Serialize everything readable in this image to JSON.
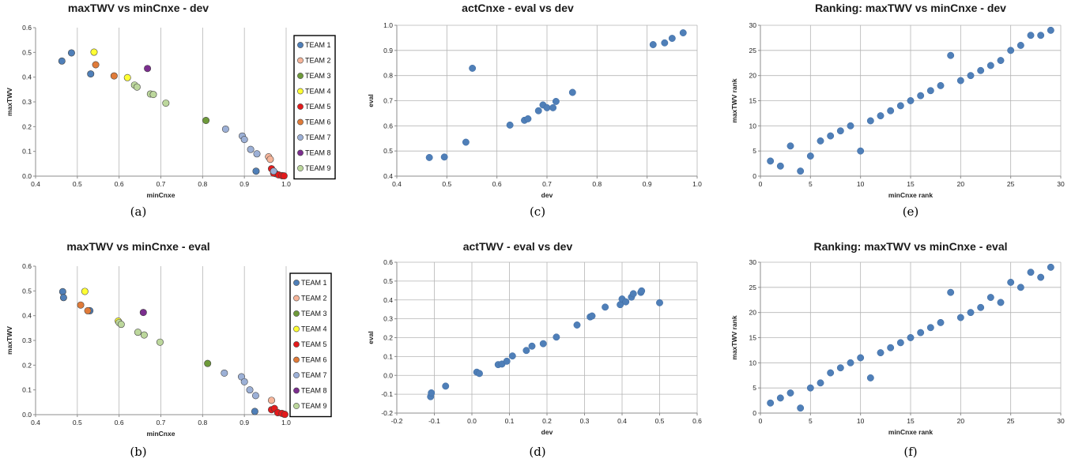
{
  "figure": {
    "team_colors": {
      "TEAM 1": "#4f7fb8",
      "TEAM 2": "#f6b59a",
      "TEAM 3": "#6e9a3a",
      "TEAM 4": "#ffff33",
      "TEAM 5": "#e31a1c",
      "TEAM 6": "#e07b39",
      "TEAM 7": "#9cb0d6",
      "TEAM 8": "#7b2d8e",
      "TEAM 9": "#bcd79c"
    },
    "uniform_point_color": "#4f7fb8",
    "gridline_color": "#b5b5b5"
  },
  "chart_data": [
    {
      "id": "a",
      "caption": "(a)",
      "type": "scatter",
      "title": "maxTWV vs minCnxe - dev",
      "xlabel": "minCnxe",
      "ylabel": "maxTWV",
      "xlim": [
        0.4,
        1.0
      ],
      "ylim": [
        0,
        0.6
      ],
      "xticks": [
        "0.4",
        "0.5",
        "0.6",
        "0.7",
        "0.8",
        "0.9",
        "1.0"
      ],
      "yticks": [
        "0.0",
        "0.1",
        "0.2",
        "0.3",
        "0.4",
        "0.5",
        "0.6"
      ],
      "grid": "vertical",
      "legend_position": "right",
      "series": [
        {
          "name": "TEAM 1",
          "x": [
            0.463,
            0.486,
            0.532,
            0.928,
            0.975,
            0.99
          ],
          "y": [
            0.465,
            0.498,
            0.413,
            0.02,
            0.01,
            0.002
          ]
        },
        {
          "name": "TEAM 2",
          "x": [
            0.958,
            0.962
          ],
          "y": [
            0.078,
            0.068
          ]
        },
        {
          "name": "TEAM 3",
          "x": [
            0.808
          ],
          "y": [
            0.225
          ]
        },
        {
          "name": "TEAM 4",
          "x": [
            0.54,
            0.62
          ],
          "y": [
            0.501,
            0.398
          ]
        },
        {
          "name": "TEAM 5",
          "x": [
            0.965,
            0.97,
            0.982,
            0.99,
            0.995
          ],
          "y": [
            0.03,
            0.012,
            0.005,
            0.002,
            0.001
          ]
        },
        {
          "name": "TEAM 6",
          "x": [
            0.544,
            0.588
          ],
          "y": [
            0.45,
            0.405
          ]
        },
        {
          "name": "TEAM 7",
          "x": [
            0.855,
            0.895,
            0.9,
            0.915,
            0.93,
            0.97
          ],
          "y": [
            0.19,
            0.162,
            0.148,
            0.108,
            0.09,
            0.02
          ]
        },
        {
          "name": "TEAM 8",
          "x": [
            0.668
          ],
          "y": [
            0.435
          ]
        },
        {
          "name": "TEAM 9",
          "x": [
            0.637,
            0.643,
            0.675,
            0.682,
            0.712
          ],
          "y": [
            0.368,
            0.36,
            0.332,
            0.33,
            0.295
          ]
        }
      ]
    },
    {
      "id": "b",
      "caption": "(b)",
      "type": "scatter",
      "title": "maxTWV vs minCnxe - eval",
      "xlabel": "minCnxe",
      "ylabel": "maxTWV",
      "xlim": [
        0.4,
        1.0
      ],
      "ylim": [
        0,
        0.6
      ],
      "xticks": [
        "0.4",
        "0.5",
        "0.6",
        "0.7",
        "0.8",
        "0.9",
        "1.0"
      ],
      "yticks": [
        "0.0",
        "0.1",
        "0.2",
        "0.3",
        "0.4",
        "0.5",
        "0.6"
      ],
      "grid": "vertical",
      "legend_position": "right",
      "series": [
        {
          "name": "TEAM 1",
          "x": [
            0.465,
            0.467,
            0.53,
            0.925,
            0.98,
            0.995
          ],
          "y": [
            0.497,
            0.473,
            0.42,
            0.013,
            0.008,
            0.002
          ]
        },
        {
          "name": "TEAM 2",
          "x": [
            0.965
          ],
          "y": [
            0.058
          ]
        },
        {
          "name": "TEAM 3",
          "x": [
            0.812
          ],
          "y": [
            0.207
          ]
        },
        {
          "name": "TEAM 4",
          "x": [
            0.518,
            0.598
          ],
          "y": [
            0.498,
            0.378
          ]
        },
        {
          "name": "TEAM 5",
          "x": [
            0.965,
            0.972,
            0.98,
            0.99,
            0.997
          ],
          "y": [
            0.02,
            0.025,
            0.008,
            0.005,
            0.001
          ]
        },
        {
          "name": "TEAM 6",
          "x": [
            0.508,
            0.525
          ],
          "y": [
            0.443,
            0.42
          ]
        },
        {
          "name": "TEAM 7",
          "x": [
            0.852,
            0.893,
            0.9,
            0.913,
            0.927
          ],
          "y": [
            0.168,
            0.153,
            0.133,
            0.1,
            0.077
          ]
        },
        {
          "name": "TEAM 8",
          "x": [
            0.658
          ],
          "y": [
            0.413
          ]
        },
        {
          "name": "TEAM 9",
          "x": [
            0.6,
            0.605,
            0.645,
            0.66,
            0.698
          ],
          "y": [
            0.372,
            0.365,
            0.333,
            0.322,
            0.293
          ]
        }
      ]
    },
    {
      "id": "c",
      "caption": "(c)",
      "type": "scatter",
      "title": "actCnxe - eval vs dev",
      "xlabel": "dev",
      "ylabel": "eval",
      "xlim": [
        0.4,
        1.0
      ],
      "ylim": [
        0.4,
        1.0
      ],
      "xticks": [
        "0.4",
        "0.5",
        "0.6",
        "0.7",
        "0.8",
        "0.9",
        "1.0"
      ],
      "yticks": [
        "0.4",
        "0.5",
        "0.6",
        "0.7",
        "0.8",
        "0.9",
        "1.0"
      ],
      "grid": "both",
      "series": [
        {
          "x": [
            0.465,
            0.495,
            0.538,
            0.551,
            0.626,
            0.655,
            0.662,
            0.683,
            0.692,
            0.7,
            0.712,
            0.718,
            0.751,
            0.912,
            0.935,
            0.95,
            0.972
          ],
          "y": [
            0.474,
            0.476,
            0.535,
            0.829,
            0.603,
            0.622,
            0.628,
            0.66,
            0.683,
            0.672,
            0.672,
            0.697,
            0.733,
            0.923,
            0.93,
            0.948,
            0.97
          ]
        }
      ]
    },
    {
      "id": "d",
      "caption": "(d)",
      "type": "scatter",
      "title": "actTWV - eval vs dev",
      "xlabel": "dev",
      "ylabel": "eval",
      "xlim": [
        -0.2,
        0.6
      ],
      "ylim": [
        -0.2,
        0.6
      ],
      "xticks": [
        "-0.2",
        "-0.1",
        "0.0",
        "0.1",
        "0.2",
        "0.3",
        "0.4",
        "0.5",
        "0.6"
      ],
      "yticks": [
        "-0.2",
        "-0.1",
        "0.0",
        "0.1",
        "0.2",
        "0.3",
        "0.4",
        "0.5",
        "0.6"
      ],
      "grid": "both",
      "series": [
        {
          "x": [
            -0.11,
            -0.108,
            -0.07,
            0.013,
            0.02,
            0.07,
            0.08,
            0.093,
            0.108,
            0.145,
            0.16,
            0.19,
            0.225,
            0.28,
            0.315,
            0.32,
            0.355,
            0.395,
            0.4,
            0.41,
            0.425,
            0.43,
            0.45,
            0.452,
            0.5
          ],
          "y": [
            -0.113,
            -0.093,
            -0.057,
            0.017,
            0.01,
            0.057,
            0.06,
            0.075,
            0.103,
            0.132,
            0.155,
            0.168,
            0.203,
            0.267,
            0.31,
            0.315,
            0.362,
            0.375,
            0.405,
            0.39,
            0.415,
            0.433,
            0.44,
            0.448,
            0.385
          ]
        }
      ]
    },
    {
      "id": "e",
      "caption": "(e)",
      "type": "scatter",
      "title": "Ranking: maxTWV vs minCnxe - dev",
      "xlabel": "minCnxe rank",
      "ylabel": "maxTWV rank",
      "xlim": [
        0,
        30
      ],
      "ylim": [
        0,
        30
      ],
      "xticks": [
        "0",
        "5",
        "10",
        "15",
        "20",
        "25",
        "30"
      ],
      "yticks": [
        "0",
        "5",
        "10",
        "15",
        "20",
        "25",
        "30"
      ],
      "grid": "both",
      "series": [
        {
          "x": [
            1,
            2,
            3,
            4,
            5,
            6,
            7,
            8,
            9,
            10,
            11,
            12,
            13,
            14,
            15,
            16,
            17,
            18,
            19,
            20,
            21,
            22,
            23,
            24,
            25,
            26,
            27,
            28,
            29
          ],
          "y": [
            3,
            2,
            6,
            1,
            4,
            7,
            8,
            9,
            10,
            5,
            11,
            12,
            13,
            14,
            15,
            16,
            17,
            18,
            24,
            19,
            20,
            21,
            22,
            23,
            25,
            26,
            28,
            28,
            29
          ]
        }
      ]
    },
    {
      "id": "f",
      "caption": "(f)",
      "type": "scatter",
      "title": "Ranking: maxTWV vs minCnxe - eval",
      "xlabel": "minCnxe rank",
      "ylabel": "maxTWV rank",
      "xlim": [
        0,
        30
      ],
      "ylim": [
        0,
        30
      ],
      "xticks": [
        "0",
        "5",
        "10",
        "15",
        "20",
        "25",
        "30"
      ],
      "yticks": [
        "0",
        "5",
        "10",
        "15",
        "20",
        "25",
        "30"
      ],
      "grid": "both",
      "series": [
        {
          "x": [
            1,
            2,
            3,
            4,
            5,
            6,
            7,
            8,
            9,
            10,
            11,
            12,
            13,
            14,
            15,
            16,
            17,
            18,
            19,
            20,
            21,
            22,
            23,
            24,
            25,
            26,
            27,
            28,
            29
          ],
          "y": [
            2,
            3,
            4,
            1,
            5,
            6,
            8,
            9,
            10,
            11,
            7,
            12,
            13,
            14,
            15,
            16,
            17,
            18,
            24,
            19,
            20,
            21,
            23,
            22,
            26,
            25,
            28,
            27,
            29
          ]
        }
      ]
    }
  ]
}
